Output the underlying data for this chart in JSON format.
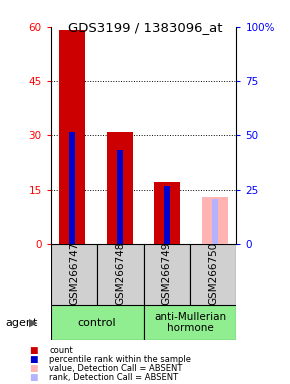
{
  "title": "GDS3199 / 1383096_at",
  "samples": [
    "GSM266747",
    "GSM266748",
    "GSM266749",
    "GSM266750"
  ],
  "count_values": [
    59,
    31,
    17,
    null
  ],
  "rank_values": [
    31,
    26,
    16,
    null
  ],
  "absent_count_values": [
    null,
    null,
    null,
    13
  ],
  "absent_rank_values": [
    null,
    null,
    null,
    12.5
  ],
  "ylim_left": [
    0,
    60
  ],
  "ylim_right": [
    0,
    100
  ],
  "yticks_left": [
    0,
    15,
    30,
    45,
    60
  ],
  "yticks_right": [
    0,
    25,
    50,
    75,
    100
  ],
  "ytick_labels_right": [
    "0",
    "25",
    "50",
    "75",
    "100%"
  ],
  "color_count": "#cc0000",
  "color_rank": "#0000cc",
  "color_absent_count": "#ffb3b3",
  "color_absent_rank": "#b3b3ff",
  "control_label": "control",
  "amh_label": "anti-Mullerian\nhormone",
  "agent_label": "agent",
  "bar_width": 0.55,
  "rank_bar_width": 0.12,
  "legend_items": [
    [
      "#cc0000",
      "count"
    ],
    [
      "#0000cc",
      "percentile rank within the sample"
    ],
    [
      "#ffb3b3",
      "value, Detection Call = ABSENT"
    ],
    [
      "#b3b3ff",
      "rank, Detection Call = ABSENT"
    ]
  ]
}
